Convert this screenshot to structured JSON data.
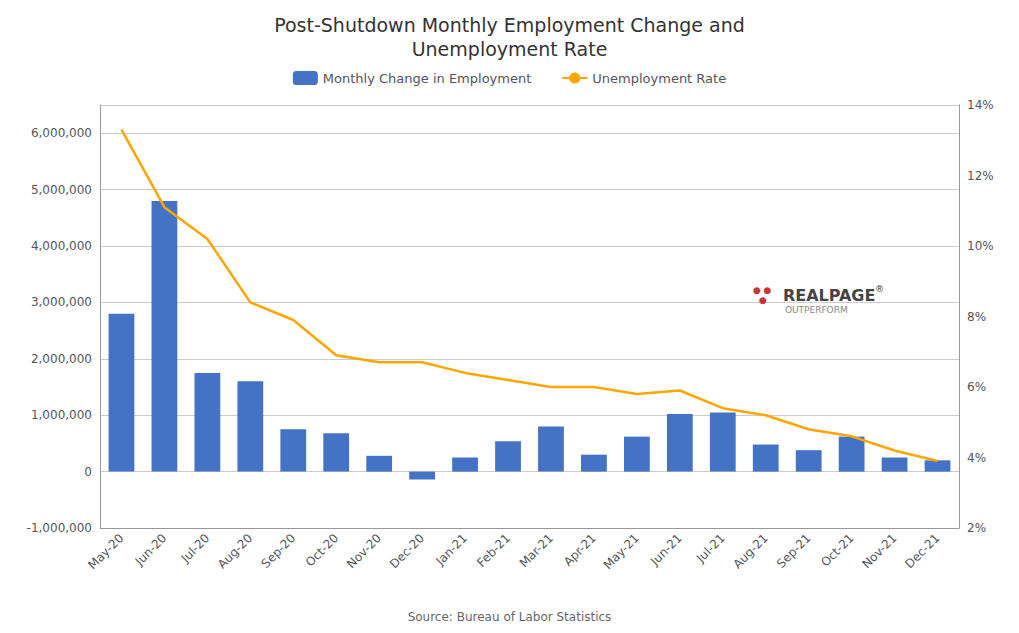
{
  "chart_data": {
    "type": "bar",
    "title": "Post-Shutdown Monthly Employment Change and\nUnemployment Rate",
    "categories": [
      "May-20",
      "Jun-20",
      "Jul-20",
      "Aug-20",
      "Sep-20",
      "Oct-20",
      "Nov-20",
      "Dec-20",
      "Jan-21",
      "Feb-21",
      "Mar-21",
      "Apr-21",
      "May-21",
      "Jun-21",
      "Jul-21",
      "Aug-21",
      "Sep-21",
      "Oct-21",
      "Nov-21",
      "Dec-21"
    ],
    "series": [
      {
        "name": "Monthly Change in Employment",
        "type": "bar",
        "color": "#4472C4",
        "values": [
          2800000,
          4800000,
          1750000,
          1600000,
          750000,
          680000,
          280000,
          -140000,
          250000,
          540000,
          800000,
          300000,
          620000,
          1020000,
          1050000,
          480000,
          380000,
          620000,
          250000,
          200000
        ]
      },
      {
        "name": "Unemployment Rate",
        "type": "line",
        "color": "#FFA500",
        "axis": "y2",
        "values": [
          13.3,
          11.1,
          10.2,
          8.4,
          7.9,
          6.9,
          6.7,
          6.7,
          6.4,
          6.2,
          6.0,
          6.0,
          5.8,
          5.9,
          5.4,
          5.2,
          4.8,
          4.6,
          4.2,
          3.9
        ]
      }
    ],
    "ylim": [
      -1000000,
      6500000
    ],
    "yticks": [
      {
        "value": -1000000,
        "label": "-1,000,000"
      },
      0,
      {
        "value": 1000000,
        "label": "1,000,000"
      },
      {
        "value": 2000000,
        "label": "2,000,000"
      },
      {
        "value": 3000000,
        "label": "3,000,000"
      },
      {
        "value": 4000000,
        "label": "4,000,000"
      },
      {
        "value": 5000000,
        "label": "5,000,000"
      },
      {
        "value": 6000000,
        "label": "6,000,000"
      }
    ],
    "y2lim": [
      2,
      14
    ],
    "y2ticks": [
      {
        "value": 2,
        "label": "2%"
      },
      {
        "value": 4,
        "label": "4%"
      },
      {
        "value": 6,
        "label": "6%"
      },
      {
        "value": 8,
        "label": "8%"
      },
      {
        "value": 10,
        "label": "10%"
      },
      {
        "value": 12,
        "label": "12%"
      },
      {
        "value": 14,
        "label": "14%"
      }
    ],
    "grid": true,
    "legend": "top",
    "source": "Source: Bureau of Labor Statistics",
    "annotations": [
      {
        "text": "● ●",
        "color": "#cc3333"
      },
      {
        "text": "●",
        "color": "#cc3333"
      },
      {
        "text": "REALPAGE",
        "color": "#444444"
      },
      {
        "text": "®",
        "color": "#444444"
      },
      {
        "text": "OUTPERFORM",
        "color": "#888888"
      }
    ]
  }
}
